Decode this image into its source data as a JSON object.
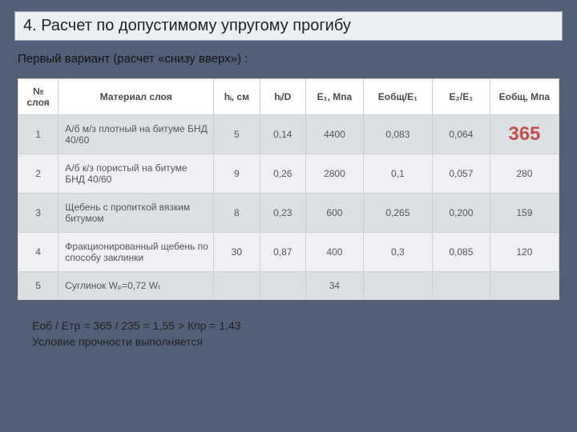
{
  "title": "4. Расчет по допустимому упругому прогибу",
  "subtitle": "Первый вариант (расчет «снизу вверх») :",
  "table": {
    "headers": {
      "num": "№ слоя",
      "material": "Материал слоя",
      "h": "hᵢ, см",
      "hd": "hᵢ/D",
      "e1": "E₁, Мпа",
      "eobe1": "Eобщ/E₁",
      "e2e1": "E₂/E₁",
      "eob": "Eобщ, Мпа"
    },
    "rows": [
      {
        "num": "1",
        "material": "А/б м/з плотный на битуме БНД 40/60",
        "h": "5",
        "hd": "0,14",
        "e1": "4400",
        "eobe1": "0,083",
        "e2e1": "0,064",
        "eob": "365",
        "highlight_eob": true
      },
      {
        "num": "2",
        "material": "А/б к/з пористый на битуме БНД 40/60",
        "h": "9",
        "hd": "0,26",
        "e1": "2800",
        "eobe1": "0,1",
        "e2e1": "0,057",
        "eob": "280"
      },
      {
        "num": "3",
        "material": "Щебень с пропиткой вязким битумом",
        "h": "8",
        "hd": "0,23",
        "e1": "600",
        "eobe1": "0,265",
        "e2e1": "0,200",
        "eob": "159"
      },
      {
        "num": "4",
        "material": "Фракционированный щебень по способу заклинки",
        "h": "30",
        "hd": "0,87",
        "e1": "400",
        "eobe1": "0,3",
        "e2e1": "0,085",
        "eob": "120"
      },
      {
        "num": "5",
        "material": "Суглинок Wₚ=0,72 Wₜ",
        "h": "",
        "hd": "",
        "e1": "34",
        "eobe1": "",
        "e2e1": "",
        "eob": ""
      }
    ]
  },
  "footnote_line1": "Eоб / Eтр = 365 / 235 = 1,55 > Кпр = 1,43",
  "footnote_line2": "Условие прочности выполняется",
  "colors": {
    "slide_bg": "#526077",
    "title_box_bg": "#eceff3",
    "title_box_border": "#9aa3b4",
    "header_bg": "#ffffff",
    "row_odd_bg": "#dcdfe3",
    "row_even_bg": "#eef0f3",
    "cell_border": "#d0d0d0",
    "highlight_color": "#c0504d",
    "text_color": "#1a1a1a"
  }
}
